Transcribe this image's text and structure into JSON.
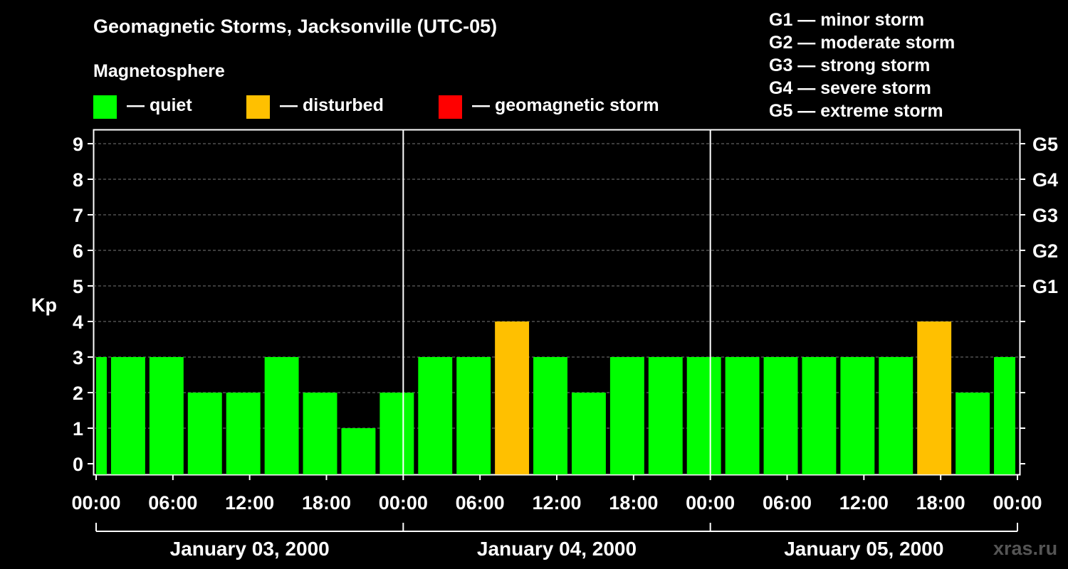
{
  "title": "Geomagnetic Storms, Jacksonville (UTC-05)",
  "magnetosphere_label": "Magnetosphere",
  "legend": [
    {
      "label": "— quiet",
      "color": "#00ff00"
    },
    {
      "label": "— disturbed",
      "color": "#ffc000"
    },
    {
      "label": "— geomagnetic storm",
      "color": "#ff0000"
    }
  ],
  "g_levels": [
    "G1 — minor storm",
    "G2 — moderate storm",
    "G3 — strong storm",
    "G4 — severe storm",
    "G5 — extreme storm"
  ],
  "watermark": "xras.ru",
  "chart_data": {
    "type": "bar",
    "ylabel": "Kp",
    "ylim": [
      0,
      9
    ],
    "y_ticks": [
      "0",
      "1",
      "2",
      "3",
      "4",
      "5",
      "6",
      "7",
      "8",
      "9"
    ],
    "right_ticks": [
      {
        "value": 5,
        "label": "G1"
      },
      {
        "value": 6,
        "label": "G2"
      },
      {
        "value": 7,
        "label": "G3"
      },
      {
        "value": 8,
        "label": "G4"
      },
      {
        "value": 9,
        "label": "G5"
      }
    ],
    "x_tick_labels": [
      "00:00",
      "06:00",
      "12:00",
      "18:00",
      "00:00",
      "06:00",
      "12:00",
      "18:00",
      "00:00",
      "06:00",
      "12:00",
      "18:00",
      "00:00"
    ],
    "x_tick_hours": [
      0,
      6,
      12,
      18,
      24,
      30,
      36,
      42,
      48,
      54,
      60,
      66,
      72
    ],
    "day_labels": [
      "January 03, 2000",
      "January 04, 2000",
      "January 05, 2000"
    ],
    "grid": "dashed horizontal",
    "bars": [
      {
        "start": 0,
        "end": 1,
        "value": 3,
        "color": "#00ff00"
      },
      {
        "start": 1,
        "end": 4,
        "value": 3,
        "color": "#00ff00"
      },
      {
        "start": 4,
        "end": 7,
        "value": 3,
        "color": "#00ff00"
      },
      {
        "start": 7,
        "end": 10,
        "value": 2,
        "color": "#00ff00"
      },
      {
        "start": 10,
        "end": 13,
        "value": 2,
        "color": "#00ff00"
      },
      {
        "start": 13,
        "end": 16,
        "value": 3,
        "color": "#00ff00"
      },
      {
        "start": 16,
        "end": 19,
        "value": 2,
        "color": "#00ff00"
      },
      {
        "start": 19,
        "end": 22,
        "value": 1,
        "color": "#00ff00"
      },
      {
        "start": 22,
        "end": 25,
        "value": 2,
        "color": "#00ff00"
      },
      {
        "start": 25,
        "end": 28,
        "value": 3,
        "color": "#00ff00"
      },
      {
        "start": 28,
        "end": 31,
        "value": 3,
        "color": "#00ff00"
      },
      {
        "start": 31,
        "end": 34,
        "value": 4,
        "color": "#ffc000"
      },
      {
        "start": 34,
        "end": 37,
        "value": 3,
        "color": "#00ff00"
      },
      {
        "start": 37,
        "end": 40,
        "value": 2,
        "color": "#00ff00"
      },
      {
        "start": 40,
        "end": 43,
        "value": 3,
        "color": "#00ff00"
      },
      {
        "start": 43,
        "end": 46,
        "value": 3,
        "color": "#00ff00"
      },
      {
        "start": 46,
        "end": 49,
        "value": 3,
        "color": "#00ff00"
      },
      {
        "start": 49,
        "end": 52,
        "value": 3,
        "color": "#00ff00"
      },
      {
        "start": 52,
        "end": 55,
        "value": 3,
        "color": "#00ff00"
      },
      {
        "start": 55,
        "end": 58,
        "value": 3,
        "color": "#00ff00"
      },
      {
        "start": 58,
        "end": 61,
        "value": 3,
        "color": "#00ff00"
      },
      {
        "start": 61,
        "end": 64,
        "value": 3,
        "color": "#00ff00"
      },
      {
        "start": 64,
        "end": 67,
        "value": 4,
        "color": "#ffc000"
      },
      {
        "start": 67,
        "end": 70,
        "value": 2,
        "color": "#00ff00"
      },
      {
        "start": 70,
        "end": 72,
        "value": 3,
        "color": "#00ff00"
      }
    ]
  }
}
